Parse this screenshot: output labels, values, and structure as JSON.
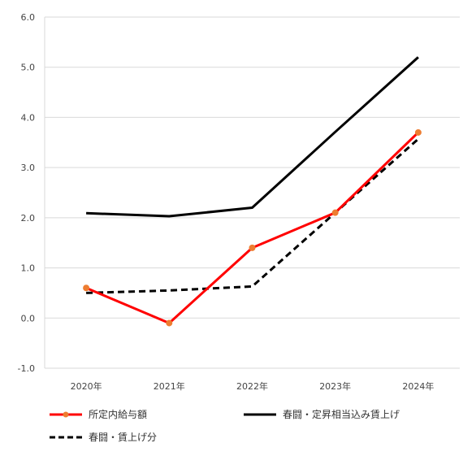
{
  "chart_data": {
    "type": "line",
    "categories": [
      "2020年",
      "2021年",
      "2022年",
      "2023年",
      "2024年"
    ],
    "ylim": [
      -1.0,
      6.0
    ],
    "yticks": [
      "6.0",
      "5.0",
      "4.0",
      "3.0",
      "2.0",
      "1.0",
      "0.0",
      "-1.0"
    ],
    "grid": true,
    "legend_position": "bottom",
    "series": [
      {
        "name": "所定内給与額",
        "values": [
          0.6,
          -0.1,
          1.4,
          2.1,
          3.7
        ],
        "color": "#ff0000",
        "marker_color": "#ed7d31",
        "style": "solid-markers"
      },
      {
        "name": "春闘・定昇相当込み賃上げ",
        "values": [
          2.09,
          2.03,
          2.2,
          3.71,
          5.2
        ],
        "color": "#000000",
        "style": "solid"
      },
      {
        "name": "春闘・賃上げ分",
        "values": [
          0.5,
          0.55,
          0.63,
          2.1,
          3.57
        ],
        "color": "#000000",
        "style": "dashed"
      }
    ]
  }
}
